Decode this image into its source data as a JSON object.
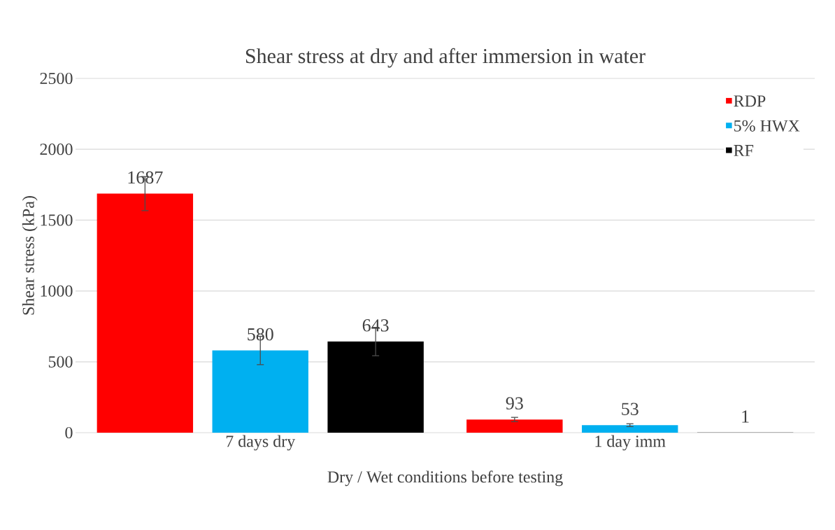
{
  "chart_data": {
    "type": "bar",
    "title": "Shear stress at dry and after immersion in water",
    "xlabel": "Dry / Wet conditions before testing",
    "ylabel": "Shear stress (kPa)",
    "categories": [
      "7 days dry",
      "1 day imm"
    ],
    "series": [
      {
        "name": "RDP",
        "color": "#ff0000",
        "values": [
          1687,
          93
        ],
        "errors": [
          120,
          15
        ]
      },
      {
        "name": "5% HWX",
        "color": "#00b0f0",
        "values": [
          580,
          53
        ],
        "errors": [
          100,
          10
        ]
      },
      {
        "name": "RF",
        "color": "#000000",
        "values": [
          643,
          1
        ],
        "errors": [
          100,
          null
        ]
      }
    ],
    "ylim": [
      0,
      2500
    ],
    "yticks": [
      0,
      500,
      1000,
      1500,
      2000,
      2500
    ],
    "grid": "y",
    "legend": "top right",
    "data_labels": true
  }
}
